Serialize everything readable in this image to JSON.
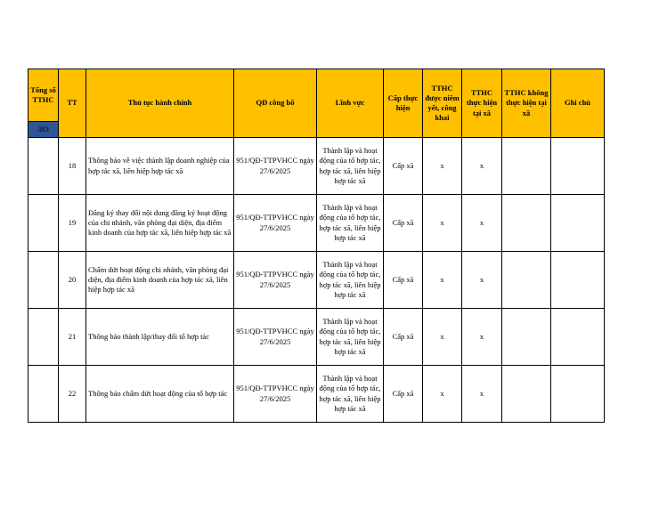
{
  "headers": {
    "total": "Tổng số TTHC",
    "total_count": "383",
    "tt": "TT",
    "procedure": "Thủ tục hành chính",
    "decision": "QĐ công bố",
    "field": "Lĩnh vực",
    "level": "Cấp thực hiện",
    "posted": "TTHC được niêm yết, công khai",
    "at_commune": "TTHC thực hiện tại xã",
    "not_at_commune": "TTHC không thực hiện tại xã",
    "note": "Ghi chú"
  },
  "accent_colors": {
    "header": "#FFC000",
    "count": "#2F5597"
  },
  "rows": [
    {
      "tt": "18",
      "procedure": "Thông báo về việc thành lập doanh nghiệp của hợp tác xã, liên hiệp hợp tác xã",
      "decision": "951/QĐ-TTPVHCC ngày 27/6/2025",
      "field": "Thành lập và hoạt động của tổ hợp tác, hợp tác xã, liên hiệp hợp tác xã",
      "level": "Cấp xã",
      "posted": "x",
      "at_commune": "x",
      "not_at_commune": "",
      "note": ""
    },
    {
      "tt": "19",
      "procedure": "Đăng ký thay đổi nội dung đăng ký hoạt động của chi nhánh, văn phòng đại diện, địa điểm kinh doanh của hợp tác xã, liên hiệp hợp tác xã",
      "decision": "951/QĐ-TTPVHCC ngày 27/6/2025",
      "field": "Thành lập và hoạt động của tổ hợp tác, hợp tác xã, liên hiệp hợp tác xã",
      "level": "Cấp xã",
      "posted": "x",
      "at_commune": "x",
      "not_at_commune": "",
      "note": ""
    },
    {
      "tt": "20",
      "procedure": "Chấm dứt hoạt động chi nhánh, văn phòng đại diện, địa điểm kinh doanh của hợp tác xã, liên hiệp hợp tác xã",
      "decision": "951/QĐ-TTPVHCC ngày 27/6/2025",
      "field": "Thành lập và hoạt động của tổ hợp tác, hợp tác xã, liên hiệp hợp tác xã",
      "level": "Cấp xã",
      "posted": "x",
      "at_commune": "x",
      "not_at_commune": "",
      "note": ""
    },
    {
      "tt": "21",
      "procedure": "Thông báo thành lập/thay đổi tổ hợp tác",
      "decision": "951/QĐ-TTPVHCC ngày 27/6/2025",
      "field": "Thành lập và hoạt động của tổ hợp tác, hợp tác xã, liên hiệp hợp tác xã",
      "level": "Cấp xã",
      "posted": "x",
      "at_commune": "x",
      "not_at_commune": "",
      "note": ""
    },
    {
      "tt": "22",
      "procedure": "Thông báo chấm dứt hoạt động của tổ hợp tác",
      "decision": "951/QĐ-TTPVHCC ngày 27/6/2025",
      "field": "Thành lập và hoạt động của tổ hợp tác, hợp tác xã, liên hiệp hợp tác xã",
      "level": "Cấp xã",
      "posted": "x",
      "at_commune": "x",
      "not_at_commune": "",
      "note": ""
    }
  ]
}
